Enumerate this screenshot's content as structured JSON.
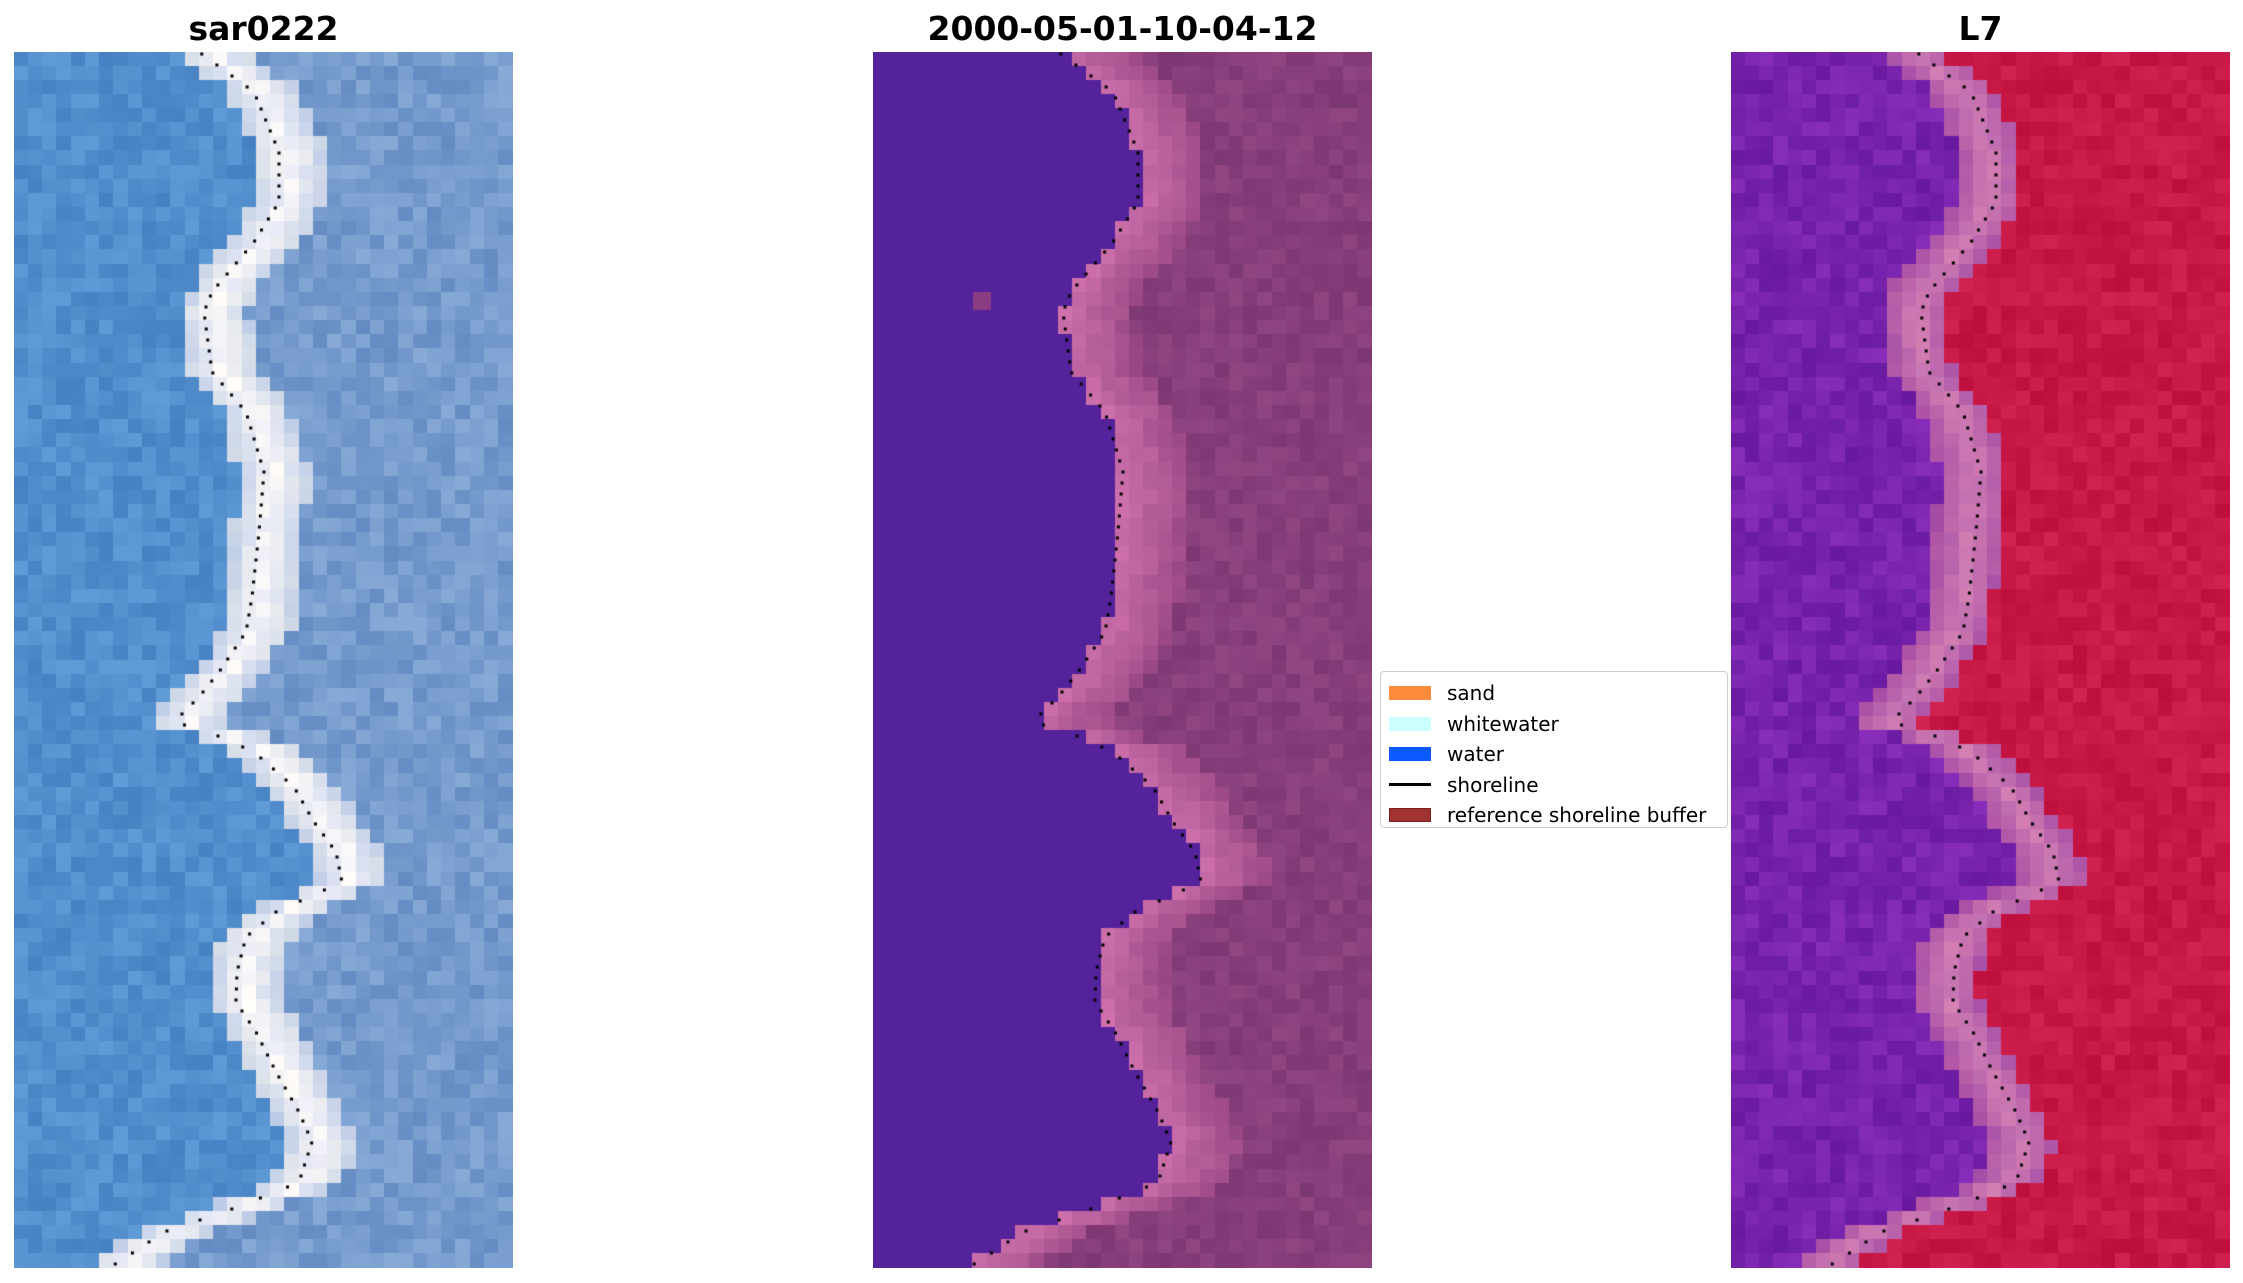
{
  "panels": [
    {
      "title": "sar0222",
      "style": "rgb"
    },
    {
      "title": "2000-05-01-10-04-12",
      "style": "classified"
    },
    {
      "title": "L7",
      "style": "index"
    }
  ],
  "legend": {
    "items": [
      {
        "label": "sand",
        "kind": "patch",
        "color": "#ff8c3c"
      },
      {
        "label": "whitewater",
        "kind": "patch",
        "color": "#ccffff"
      },
      {
        "label": "water",
        "kind": "patch",
        "color": "#0a5aff"
      },
      {
        "label": "shoreline",
        "kind": "line",
        "color": "#000000"
      },
      {
        "label": "reference shoreline buffer",
        "kind": "patch",
        "color": "#a03232",
        "edge": "#7a2020"
      }
    ]
  },
  "colors": {
    "water_class": "#54229a",
    "shoreline": "#000000"
  }
}
